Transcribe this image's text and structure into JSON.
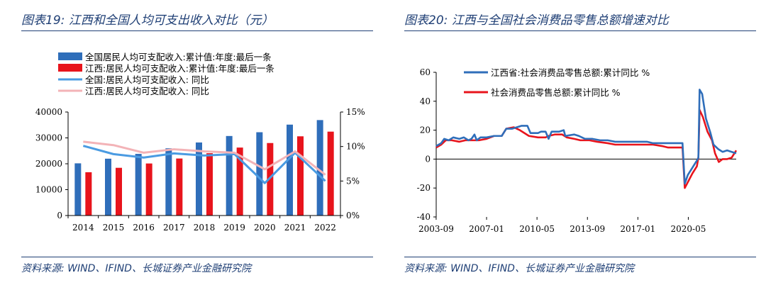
{
  "panels": {
    "left": {
      "title": "图表19:  江西和全国人均可支出收入对比（元）",
      "source": "资料来源:  WIND、IFIND、长城证券产业金融研究院"
    },
    "right": {
      "title": "图表20:  江西与全国社会消费品零售总额增速对比",
      "source": "资料来源:  WIND、IFIND、长城证券产业金融研究院"
    }
  },
  "chart_data": [
    {
      "type": "bar",
      "categories": [
        "2014",
        "2015",
        "2016",
        "2017",
        "2018",
        "2019",
        "2020",
        "2021",
        "2022"
      ],
      "y_left": {
        "ticks": [
          "0",
          "10000",
          "20000",
          "30000",
          "40000"
        ],
        "ylim": [
          0,
          40000
        ]
      },
      "y_right": {
        "ticks": [
          "0%",
          "5%",
          "10%",
          "15%"
        ],
        "ylim": [
          0,
          15
        ]
      },
      "series": [
        {
          "name": "全国居民人均可支配收入:累计值:年度:最后一条",
          "kind": "bar",
          "axis": "left",
          "color": "#2f6eba",
          "values": [
            20167,
            21966,
            23821,
            25974,
            28228,
            30733,
            32189,
            35128,
            36883
          ]
        },
        {
          "name": "江西:居民人均可支配收入:累计值:年度:最后一条",
          "kind": "bar",
          "axis": "left",
          "color": "#e8141c",
          "values": [
            16734,
            18437,
            20110,
            22031,
            24080,
            26262,
            28017,
            30610,
            32419
          ]
        },
        {
          "name": "全国:居民人均可支配收入:  同比",
          "kind": "line",
          "axis": "right",
          "color": "#4a9be2",
          "values": [
            10.1,
            8.9,
            8.4,
            9.0,
            8.7,
            8.9,
            4.7,
            9.1,
            5.0
          ]
        },
        {
          "name": "江西:居民人均可支配收入:  同比",
          "kind": "line",
          "axis": "right",
          "color": "#f3b3b7",
          "values": [
            10.7,
            10.2,
            9.1,
            9.6,
            9.3,
            9.1,
            6.7,
            9.3,
            5.9
          ]
        }
      ]
    },
    {
      "type": "line",
      "x_ticks": [
        "2003-09",
        "2007-01",
        "2010-05",
        "2013-09",
        "2017-01",
        "2020-05"
      ],
      "x_range": [
        2003.67,
        2023.5
      ],
      "y_ticks": [
        "-40",
        "-20",
        "0",
        "20",
        "40",
        "60"
      ],
      "ylim": [
        -40,
        60
      ],
      "series": [
        {
          "name": "江西省:社会消费品零售总额:累计同比  %",
          "color": "#2f6eba",
          "points": [
            [
              2003.67,
              9
            ],
            [
              2004.0,
              11
            ],
            [
              2004.2,
              14
            ],
            [
              2004.5,
              13
            ],
            [
              2004.8,
              15
            ],
            [
              2005.2,
              14
            ],
            [
              2005.5,
              15
            ],
            [
              2005.8,
              13
            ],
            [
              2006.0,
              14
            ],
            [
              2006.2,
              17
            ],
            [
              2006.35,
              13
            ],
            [
              2006.6,
              15
            ],
            [
              2007.0,
              15
            ],
            [
              2007.5,
              16
            ],
            [
              2008.0,
              16
            ],
            [
              2008.3,
              21
            ],
            [
              2008.7,
              21
            ],
            [
              2009.0,
              22
            ],
            [
              2009.3,
              23
            ],
            [
              2009.7,
              23
            ],
            [
              2009.9,
              18
            ],
            [
              2010.4,
              18
            ],
            [
              2010.6,
              19
            ],
            [
              2010.9,
              19
            ],
            [
              2011.1,
              14
            ],
            [
              2011.3,
              19
            ],
            [
              2011.8,
              19
            ],
            [
              2012.1,
              20
            ],
            [
              2012.2,
              16
            ],
            [
              2012.8,
              17
            ],
            [
              2013.1,
              16
            ],
            [
              2013.5,
              14
            ],
            [
              2014.0,
              14
            ],
            [
              2014.5,
              13
            ],
            [
              2015.0,
              13
            ],
            [
              2015.5,
              12
            ],
            [
              2016.0,
              12
            ],
            [
              2016.6,
              12
            ],
            [
              2017.0,
              12
            ],
            [
              2017.6,
              12
            ],
            [
              2018.0,
              11
            ],
            [
              2018.6,
              11
            ],
            [
              2019.0,
              11
            ],
            [
              2019.6,
              11
            ],
            [
              2019.95,
              11
            ],
            [
              2020.1,
              -17
            ],
            [
              2020.3,
              -11
            ],
            [
              2020.6,
              -6
            ],
            [
              2020.9,
              -1
            ],
            [
              2021.0,
              1
            ],
            [
              2021.08,
              48
            ],
            [
              2021.25,
              45
            ],
            [
              2021.5,
              28
            ],
            [
              2021.8,
              18
            ],
            [
              2022.0,
              10
            ],
            [
              2022.3,
              7
            ],
            [
              2022.6,
              5
            ],
            [
              2022.9,
              6
            ],
            [
              2023.2,
              5
            ],
            [
              2023.5,
              4
            ]
          ]
        },
        {
          "name": "社会消费品零售总额:累计同比  %",
          "color": "#e8141c",
          "points": [
            [
              2003.67,
              8
            ],
            [
              2004.0,
              10
            ],
            [
              2004.3,
              13
            ],
            [
              2004.7,
              13
            ],
            [
              2005.2,
              12
            ],
            [
              2005.6,
              13
            ],
            [
              2006.0,
              13
            ],
            [
              2006.5,
              13
            ],
            [
              2007.0,
              14
            ],
            [
              2007.5,
              16
            ],
            [
              2008.0,
              16
            ],
            [
              2008.3,
              21
            ],
            [
              2008.8,
              22
            ],
            [
              2009.2,
              20
            ],
            [
              2009.8,
              16
            ],
            [
              2010.4,
              15
            ],
            [
              2010.9,
              15
            ],
            [
              2011.1,
              16
            ],
            [
              2011.5,
              17
            ],
            [
              2012.0,
              17
            ],
            [
              2012.3,
              15
            ],
            [
              2012.8,
              14
            ],
            [
              2013.2,
              13
            ],
            [
              2013.8,
              13
            ],
            [
              2014.3,
              12
            ],
            [
              2015.0,
              11
            ],
            [
              2015.5,
              10
            ],
            [
              2016.0,
              10
            ],
            [
              2016.6,
              10
            ],
            [
              2017.0,
              10
            ],
            [
              2017.6,
              10
            ],
            [
              2018.0,
              10
            ],
            [
              2018.6,
              9
            ],
            [
              2019.0,
              8
            ],
            [
              2019.6,
              8
            ],
            [
              2019.95,
              8
            ],
            [
              2020.1,
              -20
            ],
            [
              2020.3,
              -16
            ],
            [
              2020.6,
              -10
            ],
            [
              2020.9,
              -5
            ],
            [
              2021.0,
              1
            ],
            [
              2021.08,
              34
            ],
            [
              2021.3,
              29
            ],
            [
              2021.6,
              19
            ],
            [
              2021.9,
              13
            ],
            [
              2022.1,
              4
            ],
            [
              2022.35,
              -2
            ],
            [
              2022.6,
              0
            ],
            [
              2022.9,
              0
            ],
            [
              2023.2,
              1
            ],
            [
              2023.5,
              6
            ]
          ]
        }
      ]
    }
  ]
}
